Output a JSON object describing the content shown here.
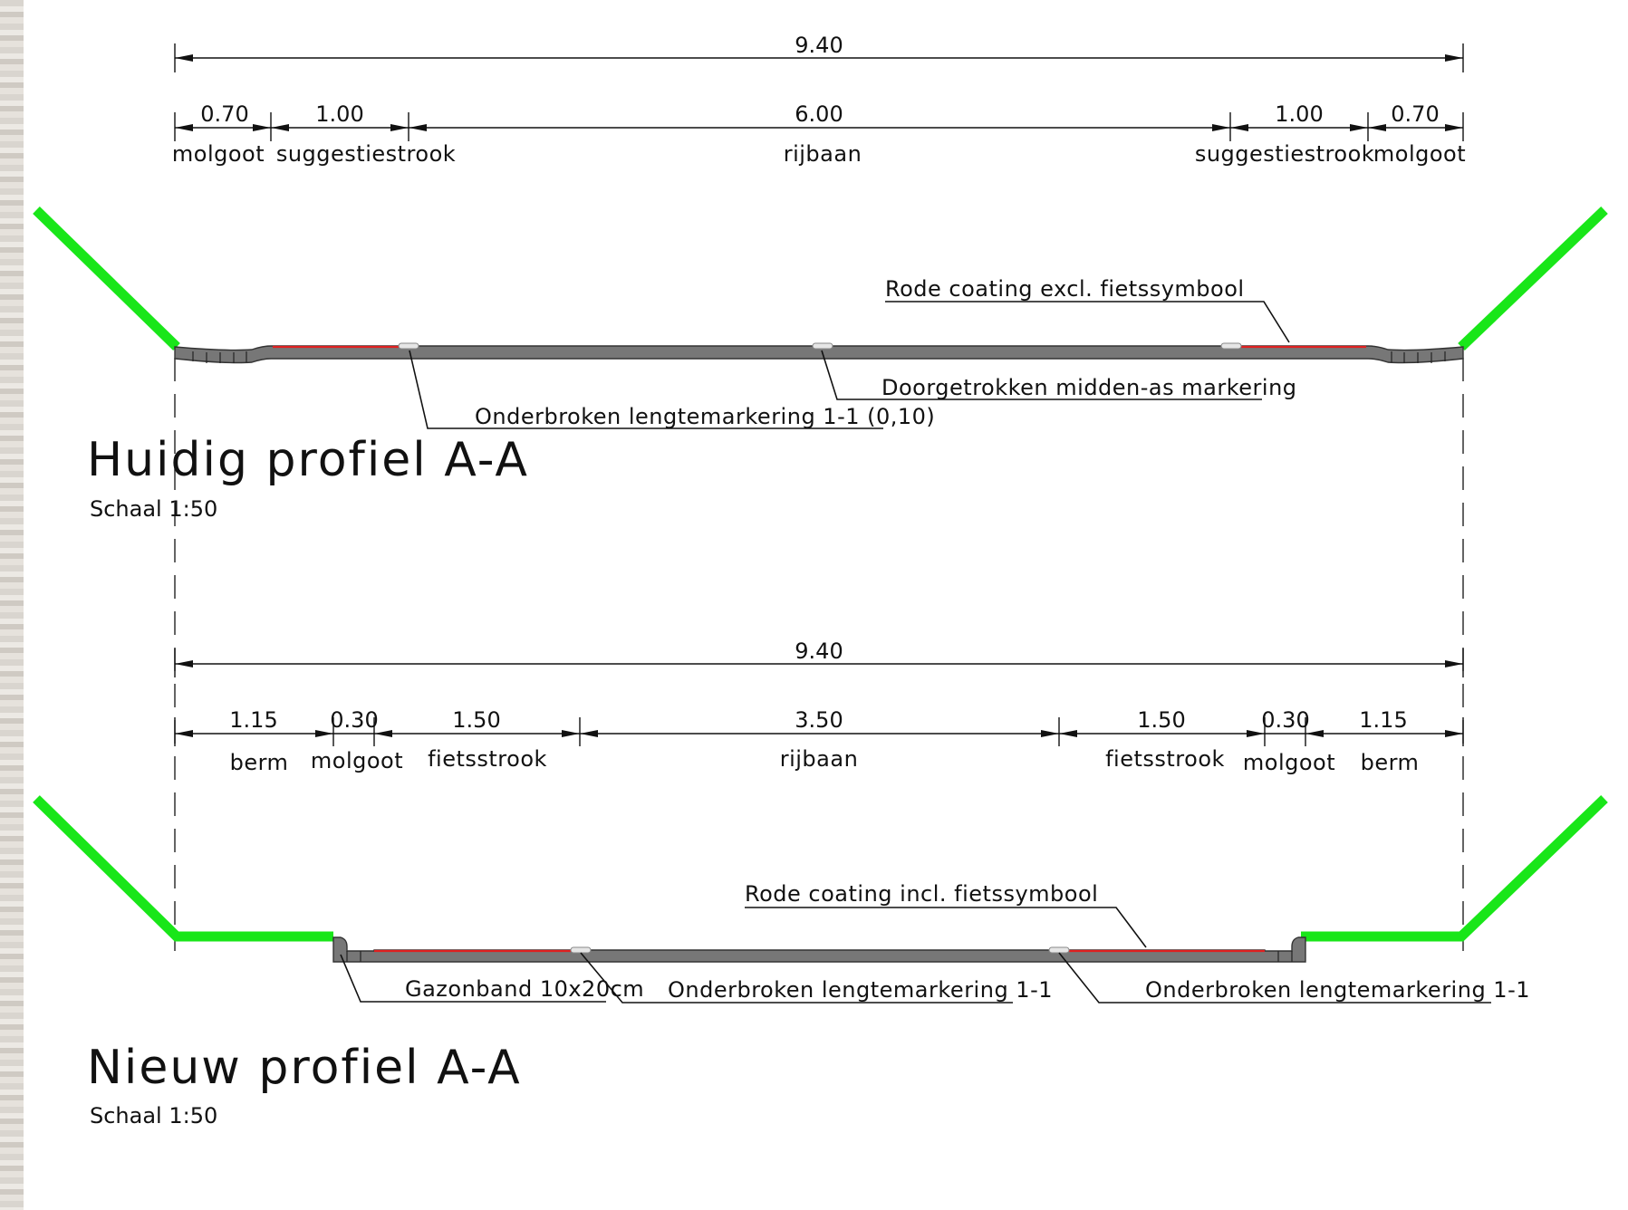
{
  "colors": {
    "grass": "#19e619",
    "pavement": "#777777",
    "red_coating": "#e02020",
    "line": "#111111"
  },
  "current_profile": {
    "title": "Huidig profiel A-A",
    "scale": "Schaal 1:50",
    "total_width": "9.40",
    "segments": [
      {
        "width": "0.70",
        "label": "molgoot"
      },
      {
        "width": "1.00",
        "label": "suggestiestrook"
      },
      {
        "width": "6.00",
        "label": "rijbaan"
      },
      {
        "width": "1.00",
        "label": "suggestiestrook"
      },
      {
        "width": "0.70",
        "label": "molgoot"
      }
    ],
    "notes": {
      "red_coating": "Rode coating excl. fietssymbool",
      "center_marking": "Doorgetrokken midden-as markering",
      "edge_marking": "Onderbroken lengtemarkering 1-1 (0,10)"
    }
  },
  "new_profile": {
    "title": "Nieuw profiel A-A",
    "scale": "Schaal 1:50",
    "total_width": "9.40",
    "segments": [
      {
        "width": "1.15",
        "label": "berm"
      },
      {
        "width": "0.30",
        "label": "molgoot"
      },
      {
        "width": "1.50",
        "label": "fietsstrook"
      },
      {
        "width": "3.50",
        "label": "rijbaan"
      },
      {
        "width": "1.50",
        "label": "fietsstrook"
      },
      {
        "width": "0.30",
        "label": "molgoot"
      },
      {
        "width": "1.15",
        "label": "berm"
      }
    ],
    "notes": {
      "red_coating": "Rode coating incl. fietssymbool",
      "curb": "Gazonband 10x20cm",
      "edge_marking_left": "Onderbroken lengtemarkering 1-1",
      "edge_marking_right": "Onderbroken lengtemarkering 1-1"
    }
  }
}
